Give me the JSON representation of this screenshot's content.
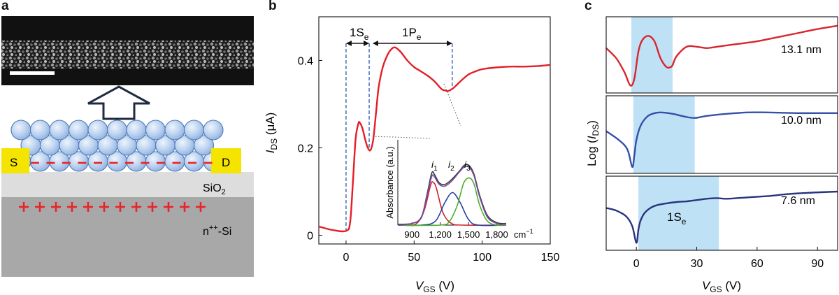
{
  "panels": {
    "a": {
      "letter": "a",
      "source_label": "S",
      "drain_label": "D",
      "oxide_label": "SiO",
      "oxide_sub": "2",
      "substrate_label": "-Si",
      "substrate_prefix": "n",
      "substrate_sup": "++",
      "n_charges_top": 12,
      "n_charges_bottom": 12,
      "colors": {
        "electrode": "#f5e400",
        "qd": "#bcd3f0",
        "qd_stroke": "#4f79b6",
        "charge": "#e8262a",
        "oxide": "#dddddd",
        "substrate": "#a8a8a8"
      }
    },
    "b": {
      "letter": "b",
      "ylabel_main": "I",
      "ylabel_sub": "DS",
      "ylabel_unit": " (μA)",
      "xlabel_main": "V",
      "xlabel_sub": "GS",
      "xlabel_unit": " (V)",
      "annot_1se_main": "1S",
      "annot_1se_sub": "e",
      "annot_1pe_main": "1P",
      "annot_1pe_sub": "e",
      "inset_ylabel": "Absorbance (a.u.)",
      "inset_unit": "cm",
      "inset_unit_sup": "−1",
      "inset_peak_labels": [
        {
          "main": "i",
          "sub": "1"
        },
        {
          "main": "i",
          "sub": "2"
        },
        {
          "main": "i",
          "sub": "3"
        }
      ]
    },
    "c": {
      "letter": "c",
      "ylabel_pre": "Log (",
      "ylabel_main": "I",
      "ylabel_sub": "DS",
      "ylabel_post": ")",
      "xlabel_main": "V",
      "xlabel_sub": "GS",
      "xlabel_unit": " (V)",
      "annot_main": "1S",
      "annot_sub": "e"
    }
  },
  "chart_data": [
    {
      "id": "b-main",
      "type": "line",
      "xlim": [
        -20,
        150
      ],
      "ylim": [
        -0.02,
        0.5
      ],
      "xticks": [
        0,
        50,
        100,
        150
      ],
      "xtick_labels": [
        "0",
        "50",
        "100",
        "150"
      ],
      "yticks": [
        0,
        0.2,
        0.4
      ],
      "ytick_labels": [
        "0",
        "0.2",
        "0.4"
      ],
      "color": "#e41e26",
      "x": [
        -20,
        -10,
        0,
        3,
        5,
        7,
        9,
        10,
        12,
        14,
        16,
        18,
        20,
        22,
        24,
        27,
        30,
        33,
        36,
        40,
        45,
        50,
        55,
        60,
        65,
        70,
        72,
        75,
        78,
        80,
        85,
        90,
        95,
        100,
        110,
        120,
        130,
        140,
        150
      ],
      "y": [
        0.02,
        0.012,
        0.01,
        0.03,
        0.12,
        0.22,
        0.255,
        0.258,
        0.245,
        0.22,
        0.2,
        0.195,
        0.22,
        0.28,
        0.34,
        0.385,
        0.41,
        0.425,
        0.43,
        0.42,
        0.4,
        0.385,
        0.375,
        0.365,
        0.352,
        0.335,
        0.332,
        0.33,
        0.335,
        0.34,
        0.355,
        0.368,
        0.375,
        0.38,
        0.384,
        0.386,
        0.386,
        0.387,
        0.39
      ],
      "vlines": [
        0,
        17,
        78
      ],
      "arrows": [
        {
          "label": "1Se",
          "from": 0,
          "to": 17
        },
        {
          "label": "1Pe",
          "from": 20,
          "to": 78
        }
      ]
    },
    {
      "id": "b-inset",
      "type": "line",
      "xlim": [
        750,
        1900
      ],
      "ylim": [
        0,
        1.05
      ],
      "xticks": [
        900,
        1200,
        1500,
        1800
      ],
      "xtick_labels": [
        "900",
        "1,200",
        "1,500",
        "1,800"
      ],
      "ylabel": "Absorbance (a.u.)",
      "xunit": "cm−1",
      "series": [
        {
          "name": "i1",
          "color": "#d0202a",
          "x": [
            750,
            850,
            950,
            1030,
            1100,
            1130,
            1160,
            1230,
            1320,
            1450,
            1900
          ],
          "y": [
            0.0,
            0.0,
            0.02,
            0.18,
            0.5,
            0.52,
            0.45,
            0.15,
            0.02,
            0.0,
            0.0
          ]
        },
        {
          "name": "i2",
          "color": "#263f9c",
          "x": [
            750,
            1000,
            1150,
            1250,
            1330,
            1410,
            1500,
            1600,
            1900
          ],
          "y": [
            0.0,
            0.0,
            0.05,
            0.28,
            0.4,
            0.28,
            0.07,
            0.0,
            0.0
          ]
        },
        {
          "name": "i3",
          "color": "#4caf2e",
          "x": [
            750,
            1200,
            1300,
            1380,
            1450,
            1510,
            1560,
            1620,
            1700,
            1800,
            1900
          ],
          "y": [
            0.0,
            0.0,
            0.05,
            0.24,
            0.52,
            0.58,
            0.5,
            0.24,
            0.05,
            0.0,
            0.0
          ]
        },
        {
          "name": "measured",
          "color": "#3a3a3a",
          "x": [
            750,
            900,
            1000,
            1060,
            1110,
            1140,
            1190,
            1250,
            1320,
            1400,
            1460,
            1510,
            1560,
            1620,
            1700,
            1800,
            1900
          ],
          "y": [
            0.01,
            0.02,
            0.1,
            0.38,
            0.64,
            0.62,
            0.52,
            0.5,
            0.56,
            0.66,
            0.74,
            0.73,
            0.62,
            0.36,
            0.12,
            0.03,
            0.02
          ]
        },
        {
          "name": "fit",
          "color": "#7a4aa3",
          "x": [
            750,
            900,
            1000,
            1060,
            1110,
            1140,
            1190,
            1250,
            1320,
            1400,
            1460,
            1510,
            1560,
            1620,
            1700,
            1800,
            1900
          ],
          "y": [
            0.0,
            0.02,
            0.09,
            0.36,
            0.6,
            0.59,
            0.5,
            0.48,
            0.54,
            0.65,
            0.72,
            0.71,
            0.6,
            0.34,
            0.1,
            0.02,
            0.0
          ]
        }
      ]
    },
    {
      "id": "c-panels",
      "type": "line",
      "xlim": [
        -15,
        100
      ],
      "xticks": [
        0,
        30,
        60,
        90
      ],
      "xtick_labels": [
        "0",
        "30",
        "60",
        "90"
      ],
      "subplots": [
        {
          "label": "13.1 nm",
          "color": "#d7262d",
          "shade": [
            -2.5,
            18
          ],
          "ylim": [
            0,
            1
          ],
          "x": [
            -15,
            -10,
            -6,
            -3,
            -1,
            1,
            3,
            6,
            9,
            12,
            15,
            17,
            18,
            20,
            25,
            30,
            35,
            40,
            50,
            60,
            70,
            80,
            90,
            100
          ],
          "y": [
            0.6,
            0.45,
            0.25,
            0.05,
            0.15,
            0.55,
            0.72,
            0.78,
            0.7,
            0.45,
            0.32,
            0.32,
            0.35,
            0.48,
            0.62,
            0.62,
            0.6,
            0.62,
            0.66,
            0.7,
            0.76,
            0.82,
            0.88,
            0.93
          ]
        },
        {
          "label": "10.0 nm",
          "color": "#3450a8",
          "shade": [
            -1.5,
            29
          ],
          "ylim": [
            0,
            1
          ],
          "x": [
            -15,
            -10,
            -6,
            -4,
            -2,
            -1,
            0,
            2,
            5,
            8,
            12,
            18,
            24,
            29,
            35,
            45,
            55,
            65,
            80,
            90,
            100
          ],
          "y": [
            0.55,
            0.45,
            0.35,
            0.25,
            0.03,
            0.2,
            0.42,
            0.62,
            0.75,
            0.8,
            0.82,
            0.8,
            0.76,
            0.74,
            0.77,
            0.8,
            0.82,
            0.82,
            0.81,
            0.81,
            0.81
          ]
        },
        {
          "label": "7.6 nm",
          "color": "#28347e",
          "shade": [
            1,
            41
          ],
          "ylim": [
            0,
            1
          ],
          "x": [
            -15,
            -10,
            -5,
            -2,
            0,
            1,
            2,
            4,
            7,
            10,
            15,
            20,
            25,
            30,
            35,
            40,
            45,
            55,
            65,
            75,
            85,
            100
          ],
          "y": [
            0.58,
            0.54,
            0.45,
            0.3,
            0.05,
            0.25,
            0.38,
            0.5,
            0.58,
            0.62,
            0.65,
            0.67,
            0.68,
            0.7,
            0.72,
            0.73,
            0.72,
            0.74,
            0.76,
            0.79,
            0.81,
            0.83
          ],
          "annotation": "1Se"
        }
      ]
    }
  ]
}
